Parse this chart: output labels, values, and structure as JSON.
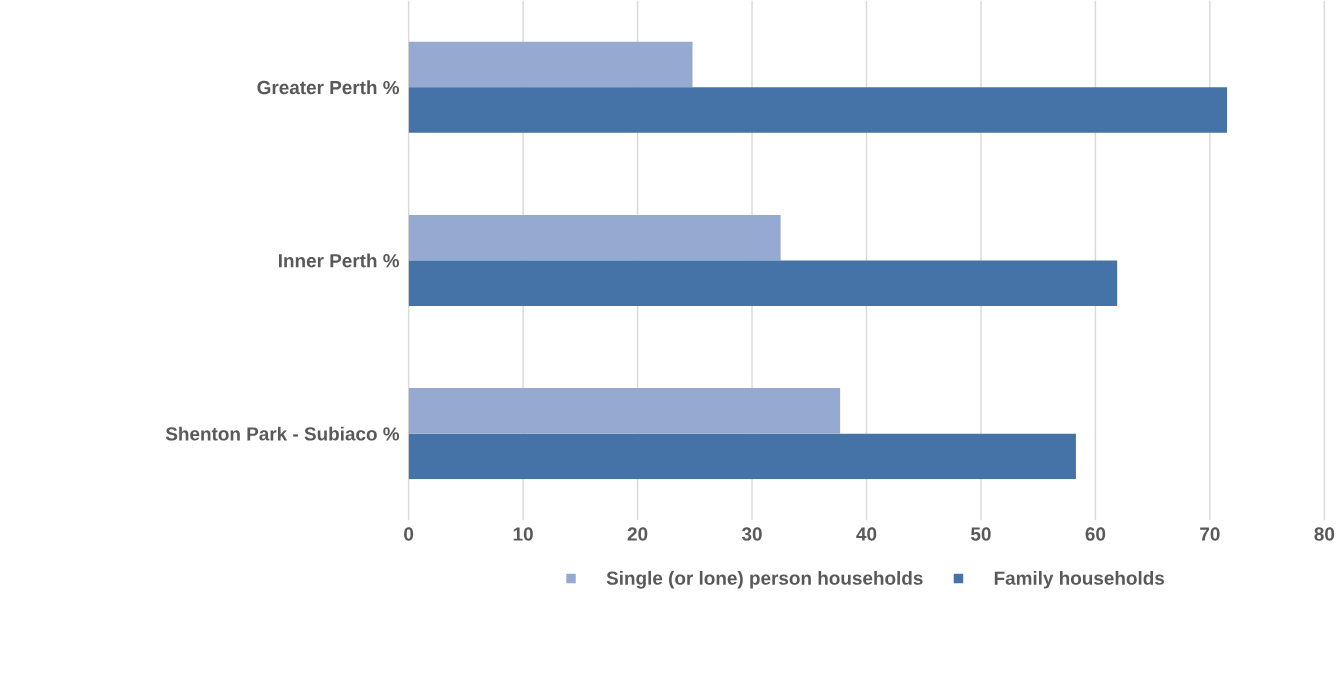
{
  "chart_data": {
    "type": "bar",
    "orientation": "horizontal",
    "categories": [
      "Greater Perth %",
      "Inner Perth %",
      "Shenton Park - Subiaco %"
    ],
    "series": [
      {
        "name": "Single (or lone) person households",
        "color": "#95a9d1",
        "values": [
          24.8,
          32.5,
          37.7
        ]
      },
      {
        "name": "Family households",
        "color": "#4573a7",
        "values": [
          71.5,
          61.9,
          58.3
        ]
      }
    ],
    "xlim": [
      0,
      80
    ],
    "xticks": [
      0,
      10,
      20,
      30,
      40,
      50,
      60,
      70,
      80
    ],
    "grid": "x",
    "legend": "bottom"
  }
}
